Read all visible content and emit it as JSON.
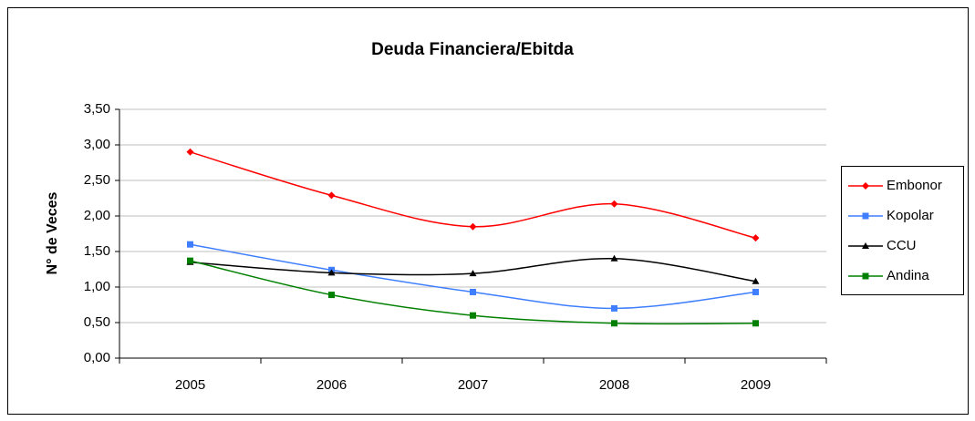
{
  "chart_data": {
    "type": "line",
    "title": "Deuda Financiera/Ebitda",
    "y_label": "N° de Veces",
    "categories": [
      "2005",
      "2006",
      "2007",
      "2008",
      "2009"
    ],
    "series": [
      {
        "name": "Embonor",
        "color": "#ff0000",
        "marker": "diamond",
        "values": [
          2.9,
          2.29,
          1.85,
          2.17,
          1.69
        ]
      },
      {
        "name": "Kopolar",
        "color": "#3f7fff",
        "marker": "square",
        "values": [
          1.6,
          1.24,
          0.93,
          0.7,
          0.93
        ]
      },
      {
        "name": "CCU",
        "color": "#000000",
        "marker": "triangle",
        "values": [
          1.35,
          1.2,
          1.19,
          1.4,
          1.08
        ]
      },
      {
        "name": "Andina",
        "color": "#008000",
        "marker": "square",
        "values": [
          1.37,
          0.89,
          0.6,
          0.49,
          0.49
        ]
      }
    ],
    "ylim": [
      0,
      3.5
    ],
    "yticks": [
      {
        "value": 0,
        "label": "0,00"
      },
      {
        "value": 0.5,
        "label": "0,50"
      },
      {
        "value": 1,
        "label": "1,00"
      },
      {
        "value": 1.5,
        "label": "1,50"
      },
      {
        "value": 2,
        "label": "2,00"
      },
      {
        "value": 2.5,
        "label": "2,50"
      },
      {
        "value": 3,
        "label": "3,00"
      },
      {
        "value": 3.5,
        "label": "3,50"
      }
    ],
    "grid": true,
    "smooth": true,
    "legend": "right"
  }
}
